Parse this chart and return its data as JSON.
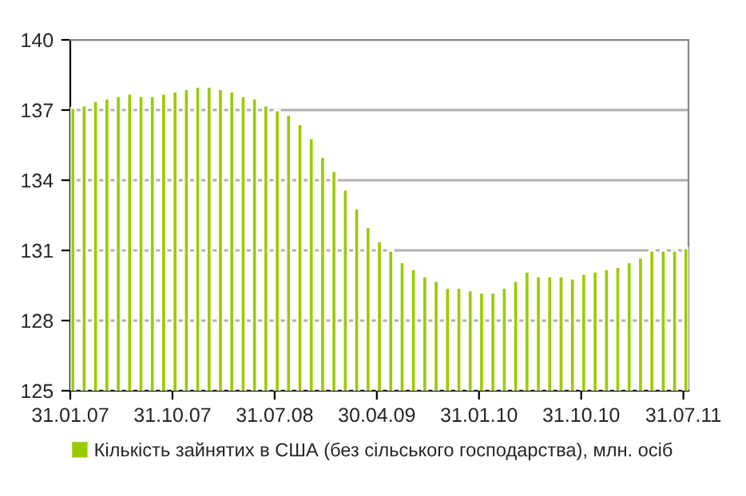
{
  "chart_data": {
    "type": "bar",
    "categories": [
      "31.01.07",
      null,
      null,
      null,
      null,
      null,
      null,
      null,
      null,
      "31.10.07",
      null,
      null,
      null,
      null,
      null,
      null,
      null,
      null,
      "31.07.08",
      null,
      null,
      null,
      null,
      null,
      null,
      null,
      null,
      "30.04.09",
      null,
      null,
      null,
      null,
      null,
      null,
      null,
      null,
      "31.01.10",
      null,
      null,
      null,
      null,
      null,
      null,
      null,
      null,
      "31.10.10",
      null,
      null,
      null,
      null,
      null,
      null,
      null,
      null,
      "31.07.11"
    ],
    "series": [
      {
        "name": "Кількість зайнятих в США (без сільського господарства), млн. осіб",
        "color": "#99cc00",
        "values": [
          137.1,
          137.2,
          137.4,
          137.5,
          137.6,
          137.7,
          137.6,
          137.6,
          137.7,
          137.8,
          137.9,
          138.0,
          138.0,
          137.9,
          137.8,
          137.6,
          137.5,
          137.2,
          137.0,
          136.8,
          136.4,
          135.8,
          135.0,
          134.4,
          133.6,
          132.8,
          132.0,
          131.4,
          131.0,
          130.5,
          130.2,
          129.9,
          129.7,
          129.4,
          129.4,
          129.3,
          129.2,
          129.2,
          129.4,
          129.7,
          130.1,
          129.9,
          129.9,
          129.9,
          129.8,
          130.0,
          130.1,
          130.2,
          130.3,
          130.5,
          130.7,
          131.0,
          131.0,
          131.0,
          131.1
        ]
      }
    ],
    "ylim": [
      125,
      140
    ],
    "yticks": [
      125,
      128,
      131,
      134,
      137,
      140
    ],
    "grid": "y",
    "legend": "bottom"
  }
}
